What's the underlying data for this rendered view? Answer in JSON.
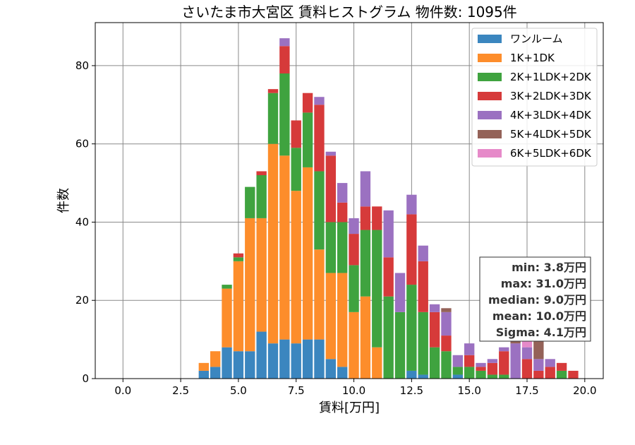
{
  "chart_data": {
    "type": "bar",
    "stacked": true,
    "title": "さいたま市大宮区 賃料ヒストグラム 物件数: 1095件",
    "xlabel": "賃料[万円]",
    "ylabel": "件数",
    "xlim": [
      -1.2,
      20.8
    ],
    "ylim": [
      0,
      91
    ],
    "xticks": [
      0.0,
      2.5,
      5.0,
      7.5,
      10.0,
      12.5,
      15.0,
      17.5,
      20.0
    ],
    "xtick_labels": [
      "0.0",
      "2.5",
      "5.0",
      "7.5",
      "10.0",
      "12.5",
      "15.0",
      "17.5",
      "20.0"
    ],
    "yticks": [
      0,
      20,
      40,
      60,
      80
    ],
    "ytick_labels": [
      "0",
      "20",
      "40",
      "60",
      "80"
    ],
    "grid": true,
    "legend_position": "top-right",
    "bin_width": 0.25,
    "x": [
      3.5,
      4.0,
      4.5,
      5.0,
      5.5,
      6.0,
      6.5,
      7.0,
      7.5,
      8.0,
      8.5,
      9.0,
      9.5,
      10.0,
      10.5,
      11.0,
      11.5,
      12.0,
      12.5,
      13.0,
      13.5,
      14.0,
      14.5,
      15.0,
      15.5,
      16.0,
      16.5,
      17.0,
      17.5,
      18.0,
      18.5,
      19.0,
      19.5
    ],
    "series": [
      {
        "name": "ワンルーム",
        "color": "#3b86bf",
        "values": [
          2,
          3,
          8,
          7,
          7,
          12,
          9,
          10,
          9,
          10,
          10,
          5,
          3,
          0,
          0,
          0,
          0,
          0,
          2,
          1,
          0,
          0,
          1,
          0,
          0,
          0,
          0,
          0,
          0,
          0,
          0,
          0,
          0
        ]
      },
      {
        "name": "1K+1DK",
        "color": "#fd8d2b",
        "values": [
          2,
          4,
          15,
          23,
          34,
          29,
          51,
          47,
          39,
          44,
          23,
          22,
          24,
          17,
          21,
          8,
          0,
          0,
          0,
          0,
          0,
          0,
          0,
          0,
          0,
          0,
          0,
          0,
          0,
          0,
          0,
          0,
          0
        ]
      },
      {
        "name": "2K+1LDK+2DK",
        "color": "#3fa33f",
        "values": [
          0,
          0,
          1,
          1,
          8,
          11,
          13,
          21,
          11,
          14,
          20,
          13,
          13,
          12,
          17,
          30,
          21,
          17,
          22,
          16,
          8,
          7,
          2,
          3,
          2,
          1,
          1,
          0,
          0,
          0,
          0,
          2,
          0
        ]
      },
      {
        "name": "3K+2LDK+3DK",
        "color": "#d63a3a",
        "values": [
          0,
          0,
          0,
          1,
          0,
          1,
          1,
          7,
          7,
          5,
          17,
          17,
          5,
          8,
          6,
          6,
          10,
          0,
          18,
          13,
          9,
          4,
          0,
          3,
          1,
          3,
          6,
          0,
          5,
          2,
          3,
          2,
          2
        ]
      },
      {
        "name": "4K+3LDK+4DK",
        "color": "#9b71c1",
        "values": [
          0,
          0,
          0,
          0,
          0,
          0,
          0,
          2,
          0,
          0,
          2,
          1,
          5,
          4,
          9,
          0,
          12,
          10,
          5,
          4,
          2,
          6,
          3,
          3,
          1,
          1,
          1,
          9,
          3,
          3,
          2,
          0,
          0
        ]
      },
      {
        "name": "5K+4LDK+5DK",
        "color": "#946258",
        "values": [
          0,
          0,
          0,
          0,
          0,
          0,
          0,
          0,
          0,
          0,
          0,
          0,
          0,
          0,
          0,
          0,
          0,
          0,
          0,
          0,
          0,
          1,
          0,
          0,
          0,
          0,
          0,
          2,
          0,
          6,
          0,
          0,
          0
        ]
      },
      {
        "name": "6K+5LDK+6DK",
        "color": "#e68ac9",
        "values": [
          0,
          0,
          0,
          0,
          0,
          0,
          0,
          0,
          0,
          0,
          0,
          0,
          0,
          0,
          0,
          0,
          0,
          0,
          0,
          0,
          0,
          0,
          0,
          0,
          0,
          0,
          0,
          0,
          2,
          0,
          0,
          0,
          0
        ]
      }
    ],
    "stats_box": [
      "min: 3.8万円",
      "max: 31.0万円",
      "median: 9.0万円",
      "mean: 10.0万円",
      "Sigma: 4.1万円"
    ]
  }
}
